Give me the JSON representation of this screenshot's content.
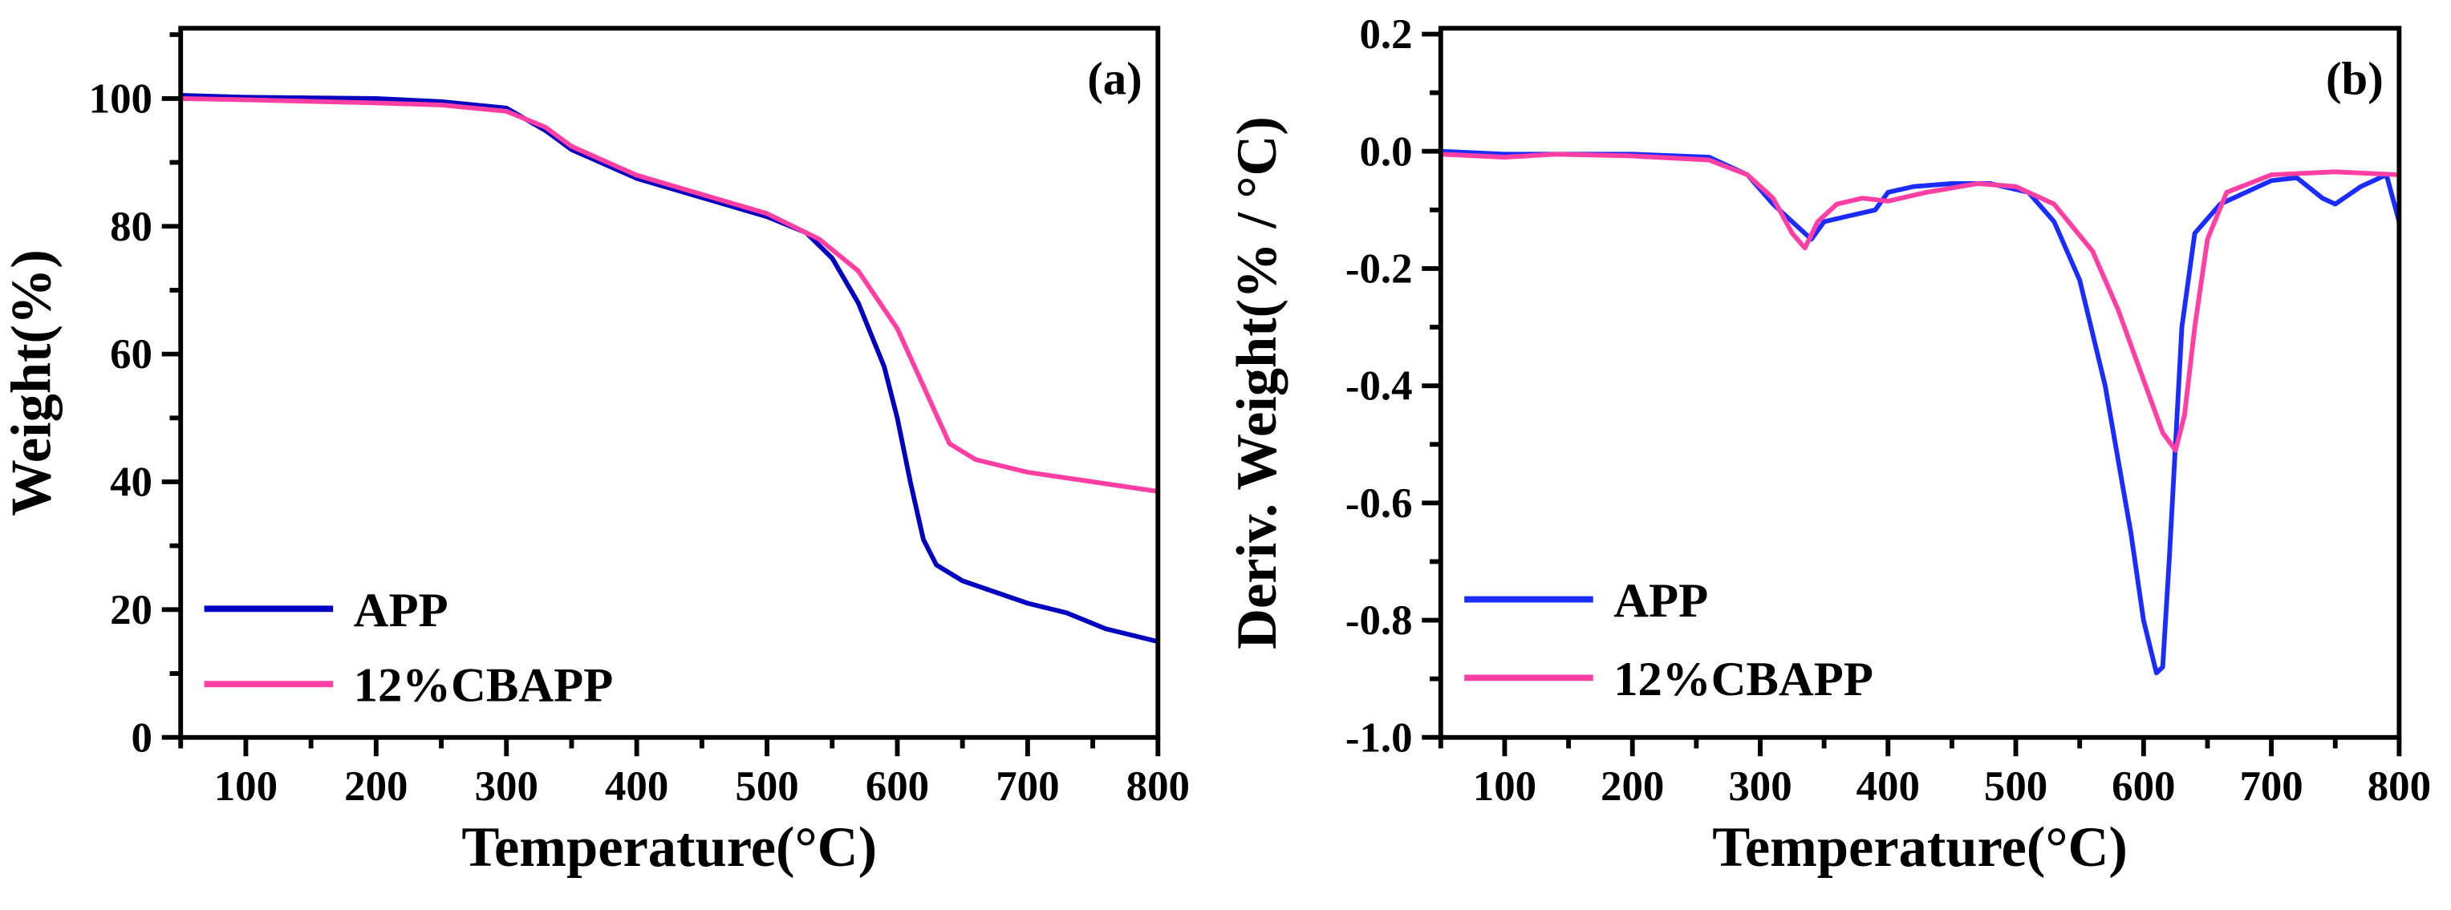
{
  "chart_data": [
    {
      "type": "line",
      "panel_label": "(a)",
      "xlabel": "Temperature(°C)",
      "ylabel": "Weight(%)",
      "xlim": [
        50,
        800
      ],
      "ylim": [
        0,
        111
      ],
      "xticks": [
        100,
        200,
        300,
        400,
        500,
        600,
        700,
        800
      ],
      "yticks": [
        0,
        20,
        40,
        60,
        80,
        100
      ],
      "ytick_labels": [
        "0",
        "20",
        "40",
        "60",
        "80",
        "100"
      ],
      "legend": "bottom-left",
      "grid": false,
      "series": [
        {
          "name": "APP",
          "color": "#0000c0",
          "x": [
            50,
            100,
            200,
            250,
            300,
            330,
            350,
            400,
            450,
            500,
            530,
            550,
            570,
            590,
            600,
            610,
            620,
            630,
            650,
            700,
            730,
            760,
            800
          ],
          "y": [
            100.5,
            100.2,
            100,
            99.5,
            98.5,
            95,
            92,
            87.5,
            84.5,
            81.5,
            79,
            75,
            68,
            58,
            50,
            40,
            31,
            27,
            24.5,
            21,
            19.5,
            17,
            15
          ]
        },
        {
          "name": "12%CBAPP",
          "color": "#ff3fa4",
          "x": [
            50,
            100,
            200,
            250,
            300,
            330,
            350,
            400,
            450,
            500,
            540,
            570,
            600,
            620,
            640,
            660,
            700,
            750,
            800
          ],
          "y": [
            100,
            99.8,
            99.3,
            99,
            98,
            95.5,
            92.5,
            88,
            85,
            82,
            78,
            73,
            64,
            55,
            46,
            43.5,
            41.5,
            40,
            38.5
          ]
        }
      ]
    },
    {
      "type": "line",
      "panel_label": "(b)",
      "xlabel": "Temperature(°C)",
      "ylabel": "Deriv. Weight(% / °C)",
      "xlim": [
        50,
        800
      ],
      "ylim": [
        -1.0,
        0.21
      ],
      "xticks": [
        100,
        200,
        300,
        400,
        500,
        600,
        700,
        800
      ],
      "yticks": [
        -1.0,
        -0.8,
        -0.6,
        -0.4,
        -0.2,
        0.0,
        0.2
      ],
      "ytick_labels": [
        "-1.0",
        "-0.8",
        "-0.6",
        "-0.4",
        "-0.2",
        "0.0",
        "0.2"
      ],
      "legend": "bottom-left",
      "grid": false,
      "series": [
        {
          "name": "APP",
          "color": "#1a2cff",
          "x": [
            50,
            100,
            200,
            260,
            290,
            310,
            330,
            340,
            350,
            370,
            390,
            400,
            420,
            450,
            480,
            510,
            530,
            550,
            570,
            590,
            600,
            610,
            615,
            620,
            630,
            640,
            660,
            700,
            720,
            740,
            750,
            770,
            790,
            800
          ],
          "y": [
            0,
            -0.005,
            -0.005,
            -0.01,
            -0.04,
            -0.09,
            -0.13,
            -0.15,
            -0.12,
            -0.11,
            -0.1,
            -0.07,
            -0.06,
            -0.055,
            -0.055,
            -0.07,
            -0.12,
            -0.22,
            -0.4,
            -0.65,
            -0.8,
            -0.89,
            -0.88,
            -0.7,
            -0.3,
            -0.14,
            -0.09,
            -0.05,
            -0.045,
            -0.08,
            -0.09,
            -0.06,
            -0.04,
            -0.12
          ]
        },
        {
          "name": "12%CBAPP",
          "color": "#ff3fa4",
          "x": [
            50,
            100,
            140,
            200,
            260,
            290,
            310,
            325,
            335,
            345,
            360,
            380,
            400,
            430,
            470,
            500,
            530,
            560,
            580,
            600,
            615,
            625,
            632,
            640,
            650,
            665,
            700,
            750,
            800
          ],
          "y": [
            -0.005,
            -0.01,
            -0.005,
            -0.008,
            -0.015,
            -0.04,
            -0.08,
            -0.14,
            -0.165,
            -0.12,
            -0.09,
            -0.08,
            -0.085,
            -0.07,
            -0.055,
            -0.06,
            -0.09,
            -0.17,
            -0.27,
            -0.39,
            -0.48,
            -0.51,
            -0.45,
            -0.3,
            -0.15,
            -0.07,
            -0.04,
            -0.035,
            -0.04
          ]
        }
      ]
    }
  ]
}
